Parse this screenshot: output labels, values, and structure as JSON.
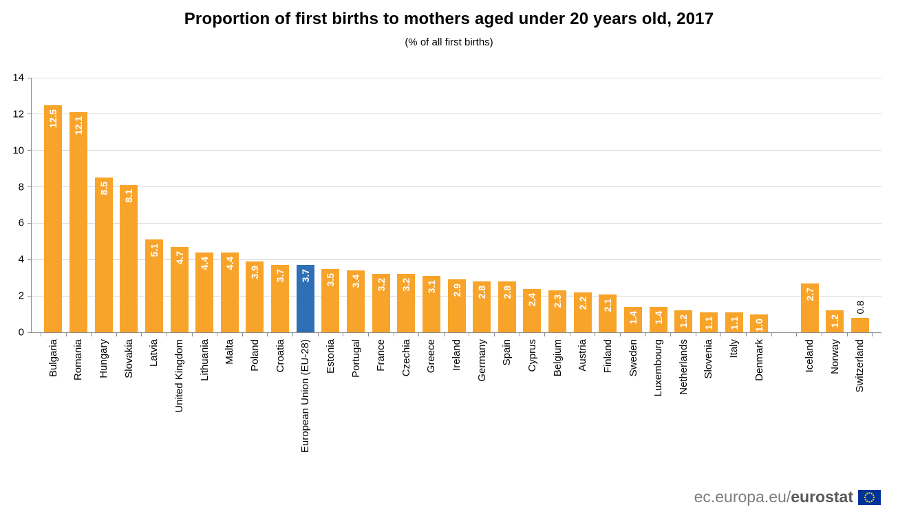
{
  "footer": {
    "url_prefix": "ec.europa.eu/",
    "url_bold": "eurostat"
  },
  "colors": {
    "bar_orange": "#F8A42B",
    "bar_blue_highlight": "#2E6FB5",
    "value_label_inside": "#FFFFFF",
    "value_label_outside": "#000000",
    "gridline": "#D9D9D9",
    "axis": "#8C8C8C",
    "text": "#000000",
    "footer_text": "#7D7D7D",
    "flag_blue": "#003399",
    "flag_yellow": "#FFCC00"
  },
  "chart_data": {
    "type": "bar",
    "title": "Proportion of first births to mothers aged under 20 years old, 2017",
    "subtitle": "(% of all first births)",
    "xlabel": "",
    "ylabel": "",
    "ylim": [
      0,
      14
    ],
    "yticks": [
      0,
      2,
      4,
      6,
      8,
      10,
      12,
      14
    ],
    "grid": true,
    "legend": "none",
    "bars": [
      {
        "label": "Bulgaria",
        "value": 12.5
      },
      {
        "label": "Romania",
        "value": 12.1
      },
      {
        "label": "Hungary",
        "value": 8.5
      },
      {
        "label": "Slovakia",
        "value": 8.1
      },
      {
        "label": "Latvia",
        "value": 5.1
      },
      {
        "label": "United Kingdom",
        "value": 4.7
      },
      {
        "label": "Lithuania",
        "value": 4.4
      },
      {
        "label": "Malta",
        "value": 4.4
      },
      {
        "label": "Poland",
        "value": 3.9
      },
      {
        "label": "Croatia",
        "value": 3.7
      },
      {
        "label": "European Union (EU-28)",
        "value": 3.7,
        "highlight": true
      },
      {
        "label": "Estonia",
        "value": 3.5
      },
      {
        "label": "Portugal",
        "value": 3.4
      },
      {
        "label": "France",
        "value": 3.2
      },
      {
        "label": "Czechia",
        "value": 3.2
      },
      {
        "label": "Greece",
        "value": 3.1
      },
      {
        "label": "Ireland",
        "value": 2.9
      },
      {
        "label": "Germany",
        "value": 2.8
      },
      {
        "label": "Spain",
        "value": 2.8
      },
      {
        "label": "Cyprus",
        "value": 2.4
      },
      {
        "label": "Belgium",
        "value": 2.3
      },
      {
        "label": "Austria",
        "value": 2.2
      },
      {
        "label": "Finland",
        "value": 2.1
      },
      {
        "label": "Sweden",
        "value": 1.4
      },
      {
        "label": "Luxembourg",
        "value": 1.4
      },
      {
        "label": "Netherlands",
        "value": 1.2
      },
      {
        "label": "Slovenia",
        "value": 1.1
      },
      {
        "label": "Italy",
        "value": 1.1
      },
      {
        "label": "Denmark",
        "value": 1.0
      },
      {
        "label": "",
        "value": null,
        "spacer": true
      },
      {
        "label": "Iceland",
        "value": 2.7
      },
      {
        "label": "Norway",
        "value": 1.2
      },
      {
        "label": "Switzerland",
        "value": 0.8,
        "value_label_outside": true
      }
    ]
  }
}
